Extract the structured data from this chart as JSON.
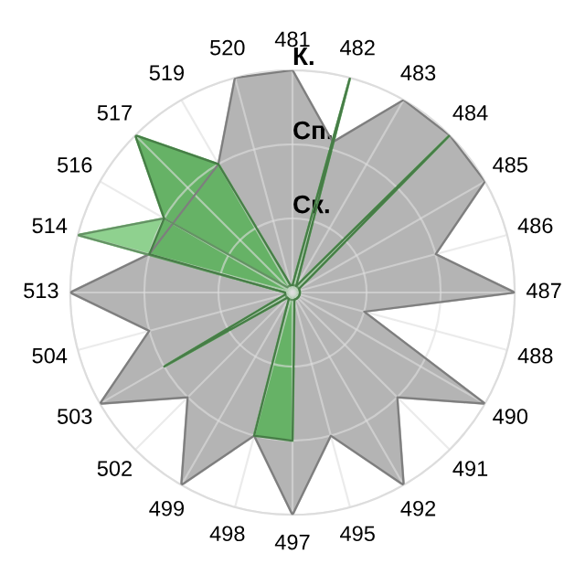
{
  "chart_data": {
    "type": "radar",
    "categories": [
      "481",
      "482",
      "483",
      "484",
      "485",
      "486",
      "487",
      "488",
      "490",
      "491",
      "492",
      "495",
      "497",
      "498",
      "499",
      "502",
      "503",
      "504",
      "513",
      "514",
      "516",
      "517",
      "519",
      "520"
    ],
    "ylim": [
      0,
      3
    ],
    "yticks": [
      {
        "value": 1,
        "label": "Ск."
      },
      {
        "value": 2,
        "label": "Сп."
      },
      {
        "value": 3,
        "label": "К."
      }
    ],
    "grid": true,
    "series": [
      {
        "color": "#b4b4b4",
        "values": [
          3,
          2.1,
          3,
          3,
          3,
          2,
          3,
          1,
          3,
          2,
          3,
          2,
          3,
          2,
          3,
          2,
          3,
          2,
          3,
          2,
          null,
          null,
          2,
          3
        ]
      },
      {
        "color": "#8fd18f",
        "values": [
          0.1,
          0.1,
          0.1,
          0.1,
          0.1,
          0.1,
          0.1,
          0.1,
          0.1,
          0.1,
          0.1,
          0.1,
          0.1,
          0.1,
          0.1,
          0.1,
          0.1,
          0.1,
          0.1,
          3,
          2,
          0.1,
          0.1,
          0.1
        ]
      },
      {
        "color": "#66b266",
        "values": [
          0.1,
          3,
          0.1,
          3,
          0.1,
          0.1,
          0.1,
          0.1,
          0.1,
          0.1,
          0.1,
          0.1,
          2,
          2,
          0.1,
          0.1,
          2,
          0.1,
          0.1,
          2,
          2,
          3,
          2,
          0.1
        ]
      }
    ]
  }
}
